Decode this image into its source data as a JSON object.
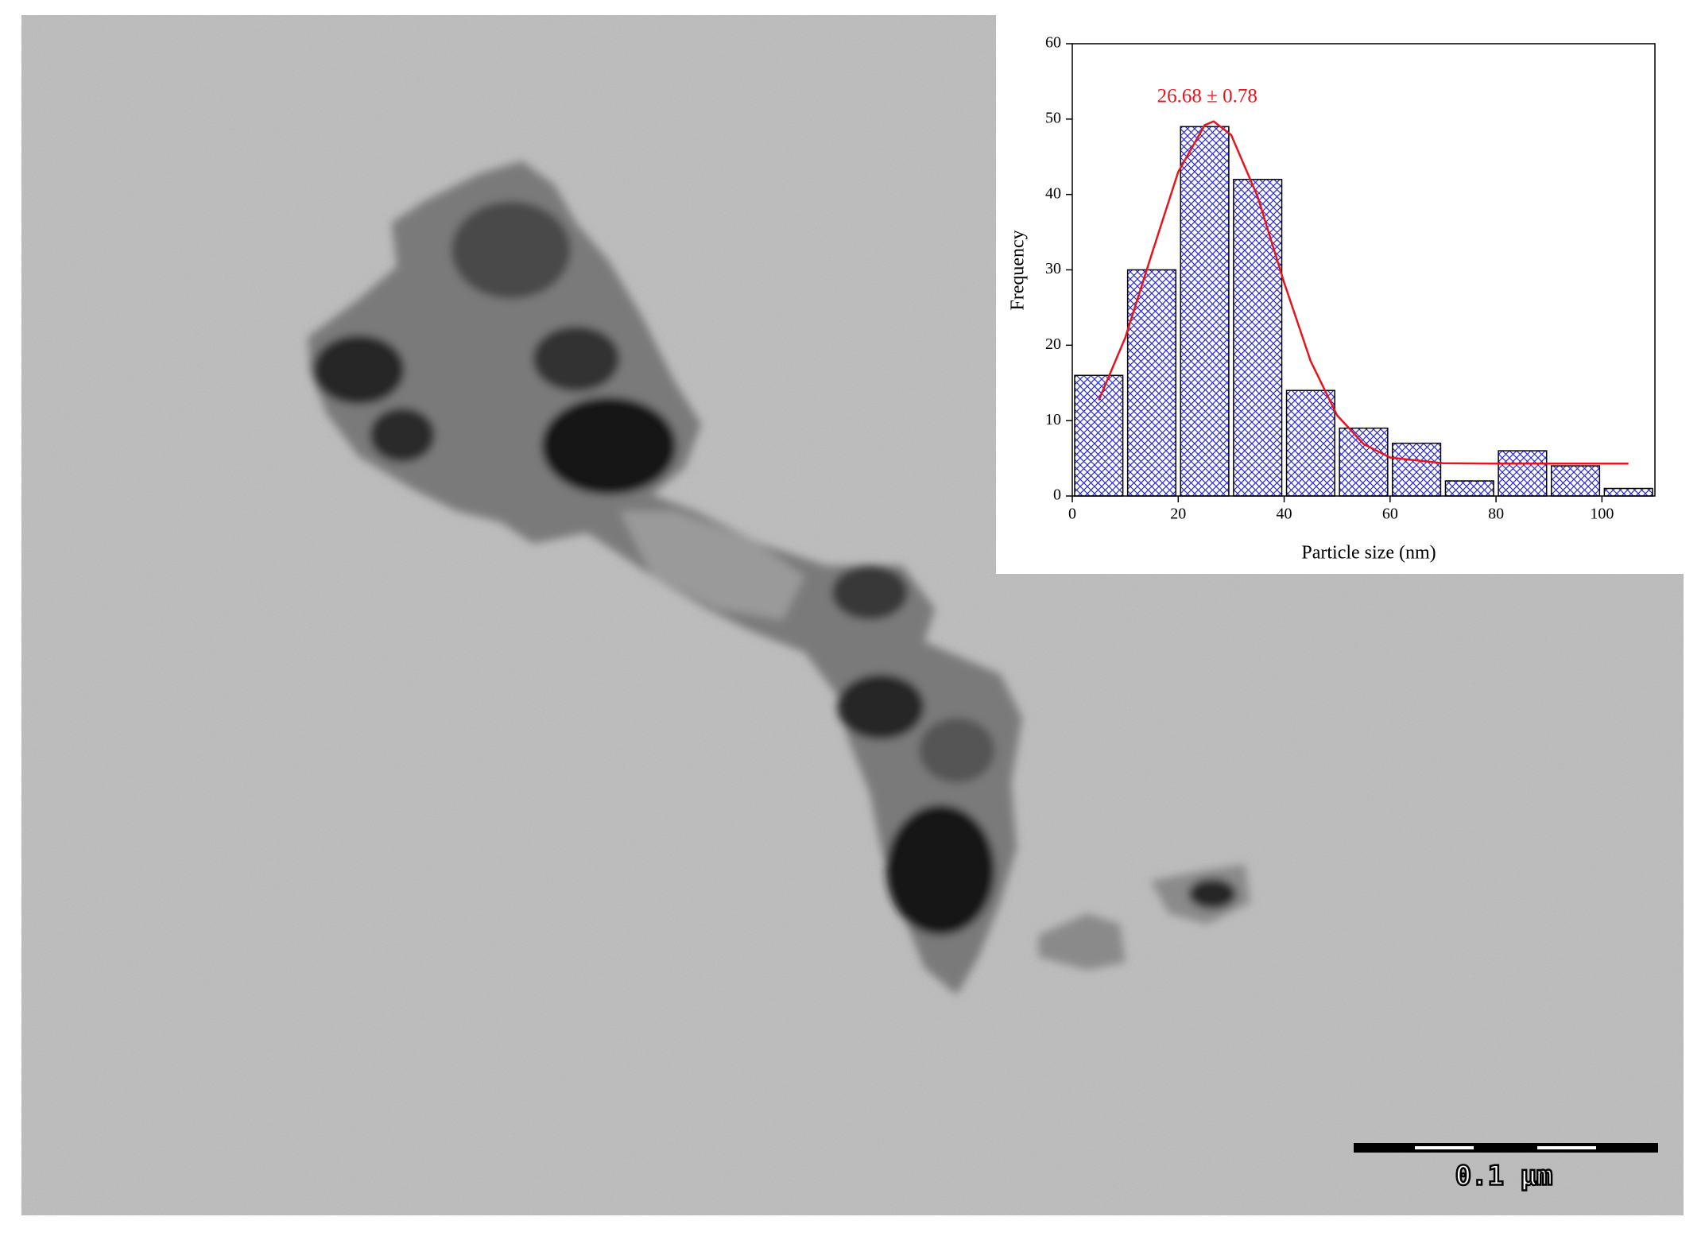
{
  "scale_bar_label": "0.1 μm",
  "chart_data": {
    "type": "histogram",
    "x_label": "Particle size (nm)",
    "y_label": "Frequency",
    "annotation": "26.68 ± 0.78",
    "bins": [
      0,
      10,
      20,
      30,
      40,
      50,
      60,
      70,
      80,
      90,
      100,
      110
    ],
    "values": [
      16,
      30,
      49,
      42,
      14,
      9,
      7,
      2,
      6,
      4,
      1
    ],
    "color": "#2b2bd0",
    "xlim": [
      0,
      110
    ],
    "ylim": [
      0,
      60
    ],
    "xticks": [
      0,
      20,
      40,
      60,
      80,
      100
    ],
    "yticks": [
      0,
      10,
      20,
      30,
      40,
      50,
      60
    ],
    "fit": {
      "color": "#e8141c",
      "x": [
        5,
        10,
        15,
        20,
        25,
        26.68,
        30,
        35,
        40,
        45,
        50,
        55,
        60,
        70,
        80,
        90,
        105
      ],
      "values": [
        12.7,
        21.0,
        32.1,
        43.0,
        49.2,
        49.7,
        47.9,
        39.7,
        28.3,
        17.9,
        10.7,
        6.9,
        5.1,
        4.35,
        4.3,
        4.3,
        4.3
      ]
    }
  }
}
